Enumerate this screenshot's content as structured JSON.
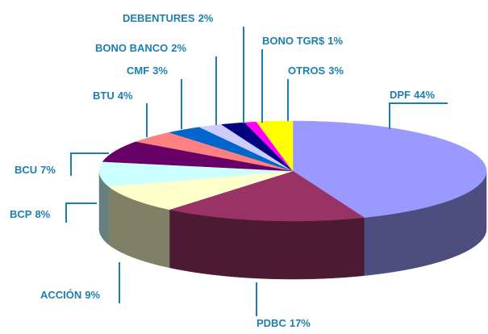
{
  "chart_data": {
    "type": "pie",
    "categories": [
      "DPF",
      "PDBC",
      "ACCIÓN",
      "BCP",
      "BCU",
      "BTU",
      "CMF",
      "BONO BANCO",
      "DEBENTURES",
      "BONO TGR$",
      "OTROS"
    ],
    "values": [
      44,
      17,
      9,
      8,
      7,
      4,
      3,
      2,
      2,
      1,
      3
    ],
    "value_labels": [
      "44%",
      "17%",
      "9%",
      "8%",
      "7%",
      "4%",
      "3%",
      "2%",
      "2%",
      "1%",
      "3%"
    ],
    "colors": [
      "#9999ff",
      "#993366",
      "#ffffcc",
      "#ccffff",
      "#660066",
      "#ff8080",
      "#0066cc",
      "#ccccff",
      "#000080",
      "#ff00ff",
      "#ffff00"
    ]
  }
}
